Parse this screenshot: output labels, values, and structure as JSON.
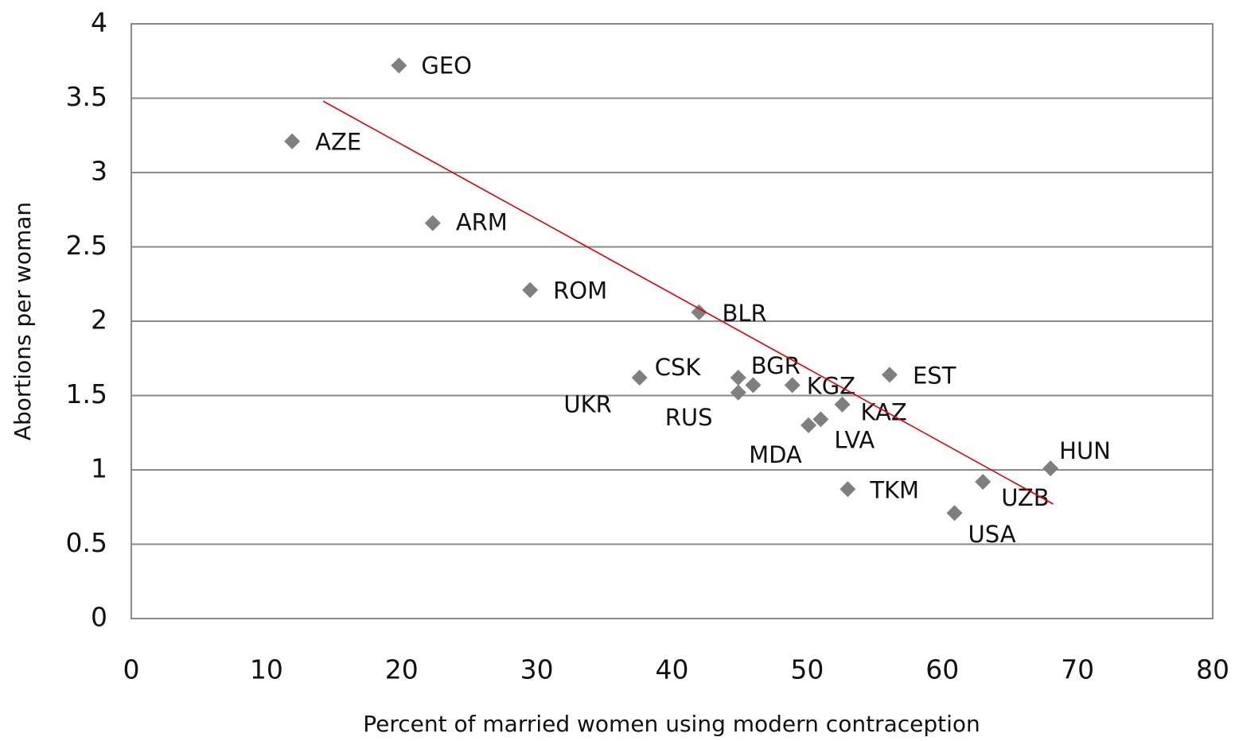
{
  "chart_data": {
    "type": "scatter",
    "x_label": "Percent of married women using modern contraception",
    "y_label": "Abortions per woman",
    "series": [
      {
        "color": "#7f7f7f",
        "labels": [
          "GEO",
          "AZE",
          "ARM",
          "ROM",
          "BLR",
          "CSK",
          "BGR",
          "RUS",
          "UKR",
          "KGZ",
          "KAZ",
          "LVA",
          "MDA",
          "EST",
          "TKM",
          "UZB",
          "USA",
          "HUN"
        ],
        "x": [
          19.8,
          11.9,
          22.3,
          29.5,
          42.0,
          37.6,
          44.9,
          44.9,
          46.0,
          48.9,
          52.6,
          51.0,
          50.1,
          56.1,
          53.0,
          63.0,
          60.9,
          68.0
        ],
        "values": [
          3.72,
          3.21,
          2.66,
          2.21,
          2.06,
          1.62,
          1.62,
          1.52,
          1.57,
          1.57,
          1.44,
          1.34,
          1.3,
          1.64,
          0.87,
          0.92,
          0.71,
          1.01
        ]
      }
    ],
    "trendline": {
      "color": "#e00000",
      "x": [
        14.2,
        68.2
      ],
      "values": [
        3.48,
        0.77
      ]
    },
    "xlim": [
      0,
      80
    ],
    "xticks": [
      0,
      10,
      20,
      30,
      40,
      50,
      60,
      70,
      80
    ],
    "ylim": [
      0,
      4
    ],
    "yticks": [
      0,
      0.5,
      1,
      1.5,
      2,
      2.5,
      3,
      3.5,
      4
    ],
    "grid": true
  }
}
